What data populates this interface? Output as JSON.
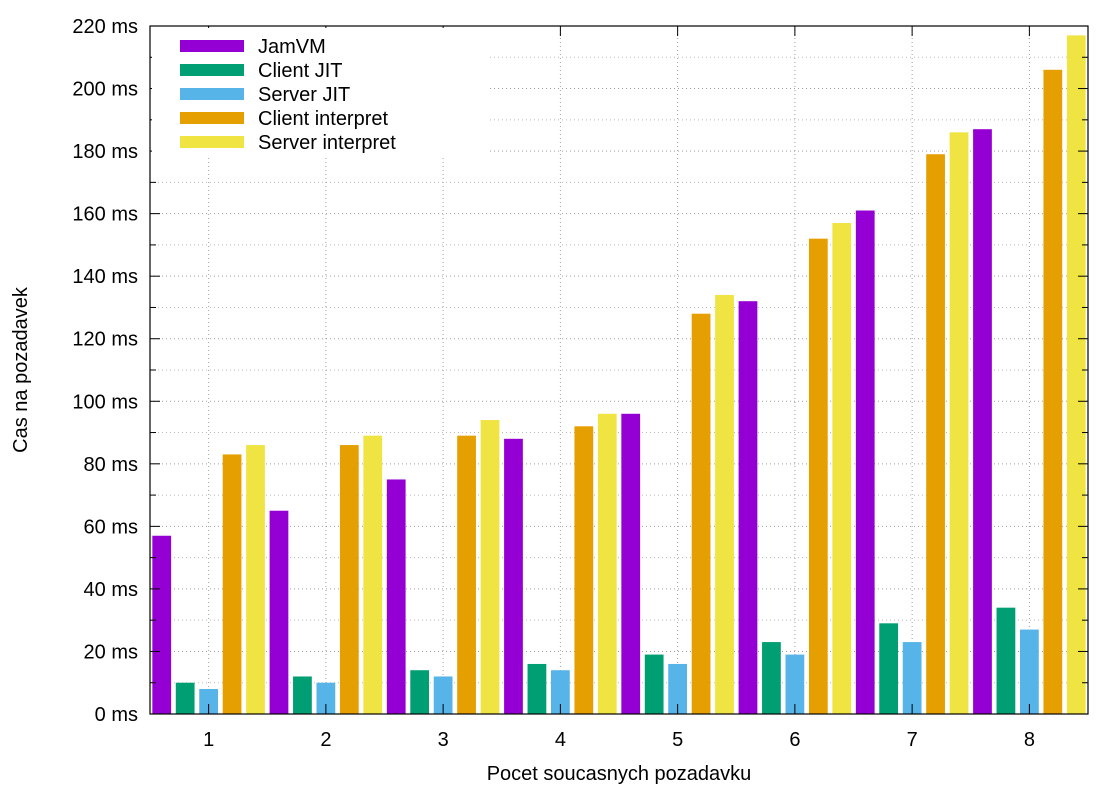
{
  "chart_data": {
    "type": "bar",
    "title": "",
    "xlabel": "Pocet soucasnych pozadavku",
    "ylabel": "Cas na pozadavek",
    "categories": [
      "1",
      "2",
      "3",
      "4",
      "5",
      "6",
      "7",
      "8"
    ],
    "ylim": [
      0,
      220
    ],
    "y_ticks": [
      0,
      20,
      40,
      60,
      80,
      100,
      120,
      140,
      160,
      180,
      200,
      220
    ],
    "y_tick_suffix": " ms",
    "grid": true,
    "legend_position": "top-left",
    "series": [
      {
        "name": "JamVM",
        "color": "#9400d3",
        "values": [
          57,
          65,
          75,
          88,
          96,
          132,
          161,
          187
        ]
      },
      {
        "name": "Client JIT",
        "color": "#009e73",
        "values": [
          10,
          12,
          14,
          16,
          19,
          23,
          29,
          34
        ]
      },
      {
        "name": "Server JIT",
        "color": "#56b4e9",
        "values": [
          8,
          10,
          12,
          14,
          16,
          19,
          23,
          27
        ]
      },
      {
        "name": "Client interpret",
        "color": "#e69f00",
        "values": [
          83,
          86,
          89,
          92,
          128,
          152,
          179,
          206
        ]
      },
      {
        "name": "Server interpret",
        "color": "#f0e442",
        "values": [
          86,
          89,
          94,
          96,
          134,
          157,
          186,
          217
        ]
      }
    ]
  }
}
